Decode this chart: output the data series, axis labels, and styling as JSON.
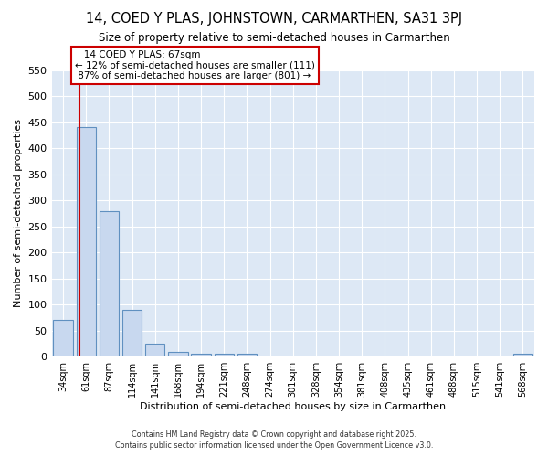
{
  "title": "14, COED Y PLAS, JOHNSTOWN, CARMARTHEN, SA31 3PJ",
  "subtitle": "Size of property relative to semi-detached houses in Carmarthen",
  "xlabel": "Distribution of semi-detached houses by size in Carmarthen",
  "ylabel": "Number of semi-detached properties",
  "footer": "Contains HM Land Registry data © Crown copyright and database right 2025.\nContains public sector information licensed under the Open Government Licence v3.0.",
  "bin_labels": [
    "34sqm",
    "61sqm",
    "87sqm",
    "114sqm",
    "141sqm",
    "168sqm",
    "194sqm",
    "221sqm",
    "248sqm",
    "274sqm",
    "301sqm",
    "328sqm",
    "354sqm",
    "381sqm",
    "408sqm",
    "435sqm",
    "461sqm",
    "488sqm",
    "515sqm",
    "541sqm",
    "568sqm"
  ],
  "bar_values": [
    70,
    440,
    280,
    90,
    25,
    10,
    5,
    5,
    5,
    0,
    0,
    0,
    0,
    0,
    0,
    0,
    0,
    0,
    0,
    0,
    5
  ],
  "bar_color": "#c8d8ef",
  "bar_edge_color": "#6090c0",
  "highlight_bar_index": 1,
  "property_sqm": 67,
  "property_label": "14 COED Y PLAS: 67sqm",
  "pct_smaller": 12,
  "count_smaller": 111,
  "pct_larger": 87,
  "count_larger": 801,
  "annotation_box_color": "#ffffff",
  "annotation_box_edge": "#cc0000",
  "vline_color": "#cc0000",
  "background_color": "#ffffff",
  "plot_bg_color": "#dde8f5",
  "ylim": [
    0,
    550
  ],
  "yticks": [
    0,
    50,
    100,
    150,
    200,
    250,
    300,
    350,
    400,
    450,
    500,
    550
  ]
}
